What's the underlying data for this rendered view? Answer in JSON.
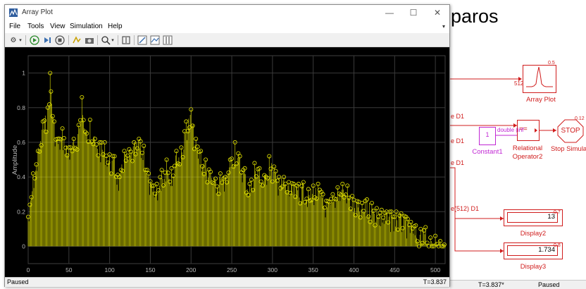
{
  "array_plot": {
    "window_title": "Array Plot",
    "menu": [
      "File",
      "Tools",
      "View",
      "Simulation",
      "Help"
    ],
    "status_left": "Paused",
    "status_right": "T=3.837",
    "icons": [
      "settings-icon",
      "run-icon",
      "step-forward-icon",
      "stop-icon",
      "highlight-icon",
      "camera-icon",
      "zoom-icon",
      "fit-icon",
      "line-style-icon",
      "legend-icon",
      "cursor-measure-icon"
    ]
  },
  "chart_data": {
    "type": "stem",
    "ylabel": "Amplitude",
    "xlabel": "",
    "xlim": [
      0,
      512
    ],
    "ylim": [
      -0.1,
      1.1
    ],
    "x_ticks": [
      0,
      50,
      100,
      150,
      200,
      250,
      300,
      350,
      400,
      450,
      500
    ],
    "y_ticks": [
      0,
      0.2,
      0.4,
      0.6,
      0.8,
      1
    ],
    "color": "#e8e800",
    "grid": true,
    "samples": 512,
    "envelope": [
      [
        0,
        0.17
      ],
      [
        6,
        0.42
      ],
      [
        12,
        0.55
      ],
      [
        18,
        0.72
      ],
      [
        24,
        0.8
      ],
      [
        27,
        1.0
      ],
      [
        32,
        0.72
      ],
      [
        36,
        0.62
      ],
      [
        42,
        0.68
      ],
      [
        50,
        0.57
      ],
      [
        56,
        0.62
      ],
      [
        62,
        0.7
      ],
      [
        66,
        0.86
      ],
      [
        70,
        0.66
      ],
      [
        76,
        0.73
      ],
      [
        82,
        0.62
      ],
      [
        88,
        0.6
      ],
      [
        94,
        0.6
      ],
      [
        100,
        0.53
      ],
      [
        106,
        0.52
      ],
      [
        112,
        0.4
      ],
      [
        118,
        0.55
      ],
      [
        124,
        0.56
      ],
      [
        130,
        0.6
      ],
      [
        136,
        0.62
      ],
      [
        142,
        0.58
      ],
      [
        148,
        0.42
      ],
      [
        152,
        0.35
      ],
      [
        158,
        0.36
      ],
      [
        164,
        0.44
      ],
      [
        170,
        0.5
      ],
      [
        176,
        0.45
      ],
      [
        182,
        0.55
      ],
      [
        188,
        0.57
      ],
      [
        194,
        0.72
      ],
      [
        200,
        0.79
      ],
      [
        206,
        0.62
      ],
      [
        212,
        0.55
      ],
      [
        218,
        0.5
      ],
      [
        224,
        0.43
      ],
      [
        230,
        0.39
      ],
      [
        236,
        0.42
      ],
      [
        242,
        0.4
      ],
      [
        248,
        0.5
      ],
      [
        254,
        0.6
      ],
      [
        260,
        0.52
      ],
      [
        266,
        0.45
      ],
      [
        272,
        0.36
      ],
      [
        278,
        0.48
      ],
      [
        284,
        0.45
      ],
      [
        290,
        0.41
      ],
      [
        296,
        0.52
      ],
      [
        302,
        0.46
      ],
      [
        308,
        0.4
      ],
      [
        314,
        0.4
      ],
      [
        320,
        0.37
      ],
      [
        326,
        0.36
      ],
      [
        332,
        0.36
      ],
      [
        338,
        0.37
      ],
      [
        344,
        0.33
      ],
      [
        350,
        0.35
      ],
      [
        356,
        0.36
      ],
      [
        362,
        0.3
      ],
      [
        368,
        0.26
      ],
      [
        374,
        0.3
      ],
      [
        380,
        0.34
      ],
      [
        386,
        0.36
      ],
      [
        392,
        0.35
      ],
      [
        398,
        0.29
      ],
      [
        404,
        0.26
      ],
      [
        410,
        0.25
      ],
      [
        416,
        0.27
      ],
      [
        422,
        0.25
      ],
      [
        428,
        0.22
      ],
      [
        434,
        0.21
      ],
      [
        440,
        0.2
      ],
      [
        446,
        0.2
      ],
      [
        452,
        0.2
      ],
      [
        458,
        0.19
      ],
      [
        464,
        0.17
      ],
      [
        470,
        0.14
      ],
      [
        476,
        0.12
      ],
      [
        482,
        0.1
      ],
      [
        488,
        0.11
      ],
      [
        494,
        0.05
      ],
      [
        500,
        0.06
      ],
      [
        506,
        0.03
      ],
      [
        511,
        0.01
      ]
    ]
  },
  "simulink": {
    "model_title_fragment": "paros",
    "blocks": {
      "array_plot": {
        "label": "Array Plot",
        "inport": "512",
        "priority": "0.5"
      },
      "constant": {
        "value": "1",
        "label": "Constant1"
      },
      "relational": {
        "label_line1": "Relational",
        "label_line2": "Operator2",
        "symbol": "=="
      },
      "stop": {
        "label": "Stop Simulat",
        "text": "STOP",
        "priority": "0.12"
      },
      "display2": {
        "value": "13",
        "label": "Display2",
        "priority": "0.7"
      },
      "display3": {
        "value": "1.734",
        "label": "Display3",
        "priority": "0.8"
      }
    },
    "signals": [
      "e D1",
      "double (inf",
      "e D1",
      "e D1",
      "e(512) D1"
    ],
    "status_time": "T=3.837*",
    "status_mode": "Paused"
  }
}
